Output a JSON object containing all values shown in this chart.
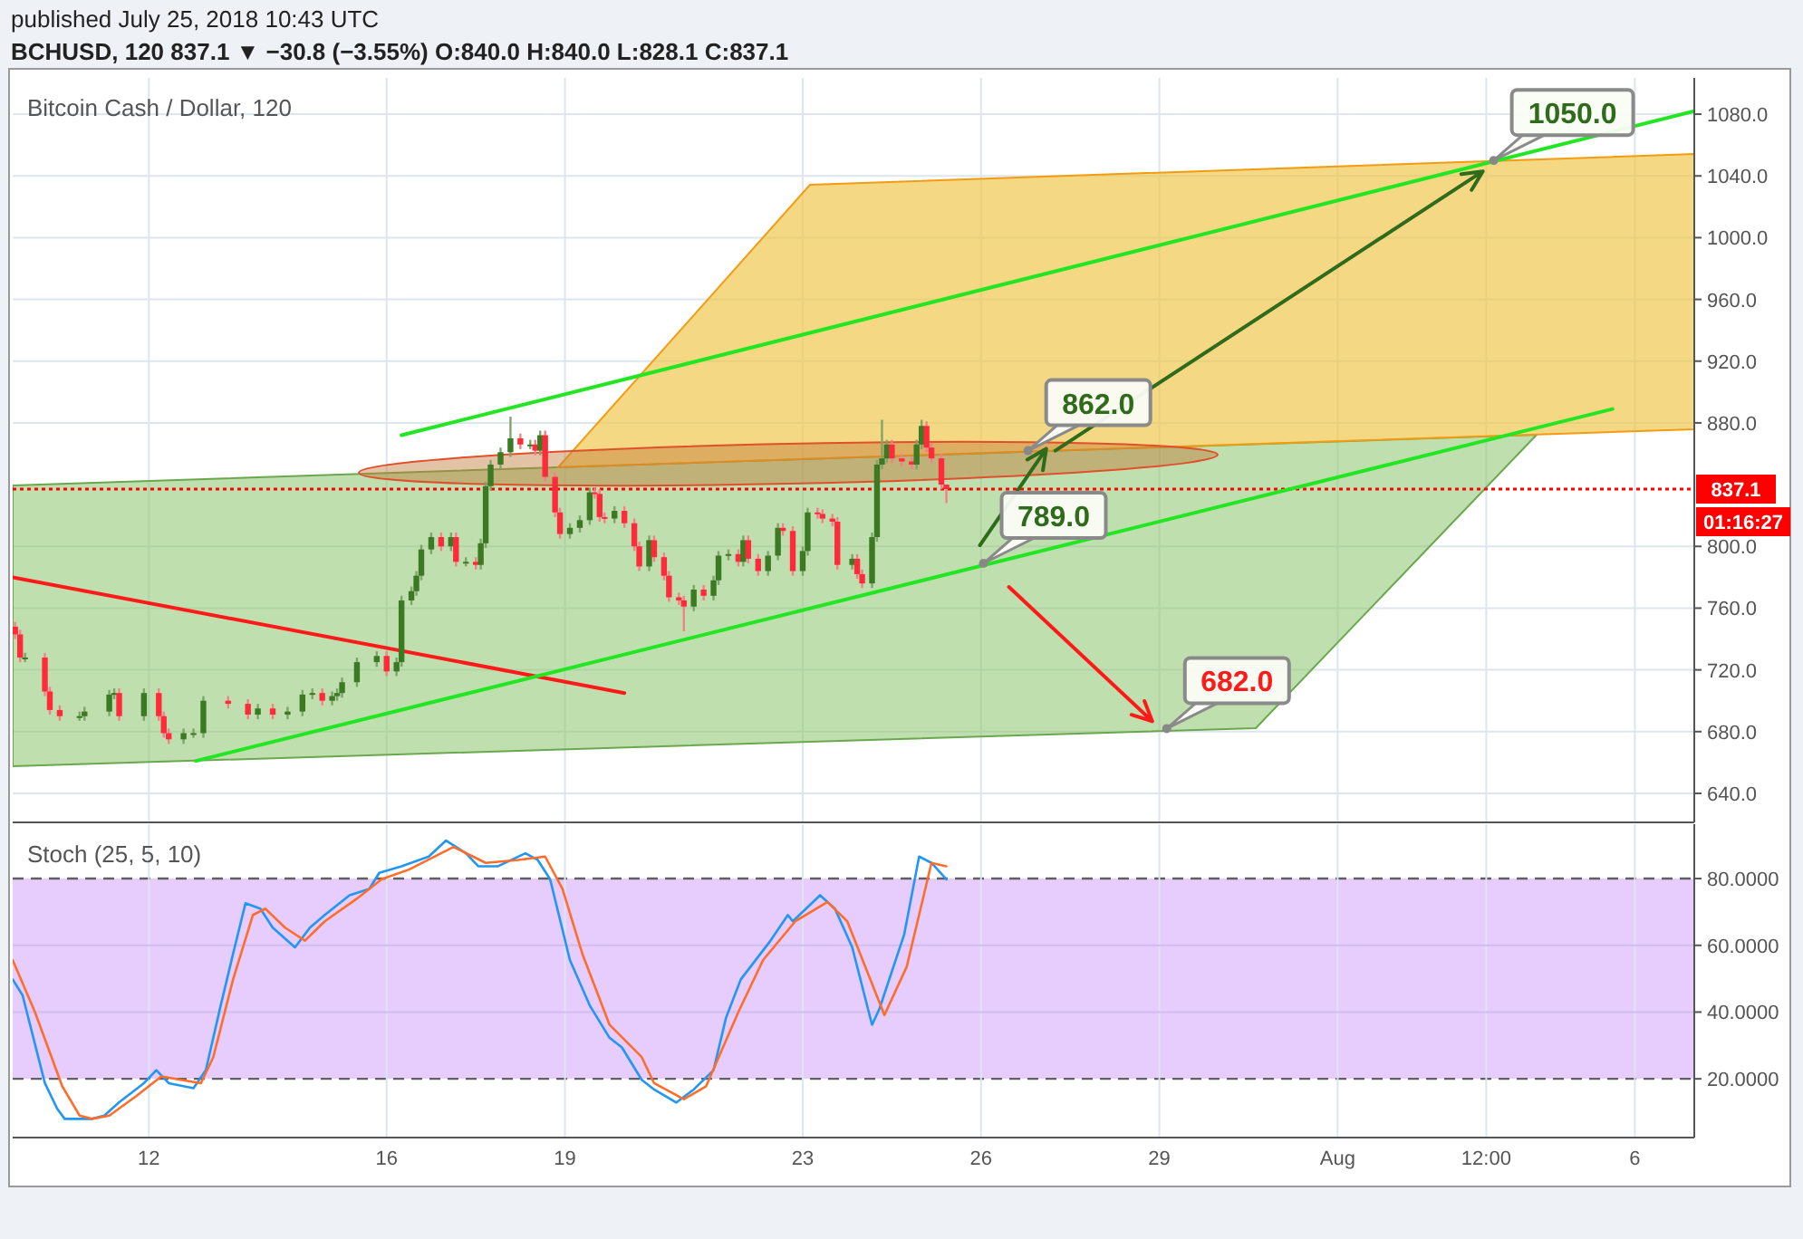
{
  "chart_data": [
    {
      "type": "candlestick",
      "title": "Bitcoin Cash / Dollar, 120",
      "xlim": [
        "2018-07-09T17:00",
        "2018-08-07T00:00"
      ],
      "xticks": [
        {
          "value": "2018-07-12",
          "label": null
        },
        {
          "value": "2018-07-16",
          "label": null
        },
        {
          "value": "2018-07-19",
          "label": null
        },
        {
          "value": "2018-07-23",
          "label": null
        },
        {
          "value": "2018-07-26",
          "label": null
        },
        {
          "value": "2018-07-29",
          "label": null
        },
        {
          "value": "2018-08-01",
          "label": null
        },
        {
          "value": "2018-08-03T12:00",
          "label": null
        },
        {
          "value": "2018-08-06",
          "label": null
        }
      ],
      "ylim": [
        621.2,
        1103.5
      ],
      "yticks": [
        {
          "value": 640,
          "label": "640.0"
        },
        {
          "value": 680,
          "label": "680.0"
        },
        {
          "value": 720,
          "label": "720.0"
        },
        {
          "value": 760,
          "label": "760.0"
        },
        {
          "value": 800,
          "label": "800.0"
        },
        {
          "value": 880,
          "label": "880.0"
        },
        {
          "value": 920,
          "label": "920.0"
        },
        {
          "value": 960,
          "label": "960.0"
        },
        {
          "value": 1000,
          "label": "1000.0"
        },
        {
          "value": 1040,
          "label": "1040.0"
        },
        {
          "value": 1080,
          "label": "1080.0"
        }
      ],
      "grid": true,
      "tick_labels": "y",
      "series": [
        {
          "x": [
            "2018-07-09T18:00",
            "2018-07-09T20:00",
            "2018-07-09T22:00",
            "2018-07-10T06:00",
            "2018-07-10T08:00",
            "2018-07-10T12:00",
            "2018-07-10T20:00",
            "2018-07-10T22:00",
            "2018-07-11T08:00",
            "2018-07-11T10:00",
            "2018-07-11T12:00",
            "2018-07-11T22:00",
            "2018-07-12T04:00",
            "2018-07-12T06:00",
            "2018-07-12T08:00",
            "2018-07-12T14:00",
            "2018-07-12T18:00",
            "2018-07-12T22:00",
            "2018-07-13T08:00",
            "2018-07-13T16:00",
            "2018-07-13T20:00",
            "2018-07-14T02:00",
            "2018-07-14T08:00",
            "2018-07-14T14:00",
            "2018-07-14T18:00",
            "2018-07-14T22:00",
            "2018-07-15T02:00",
            "2018-07-15T04:00",
            "2018-07-15T06:00",
            "2018-07-15T12:00",
            "2018-07-15T20:00",
            "2018-07-16T00:00",
            "2018-07-16T04:00",
            "2018-07-16T06:00",
            "2018-07-16T10:00",
            "2018-07-16T12:00",
            "2018-07-16T14:00",
            "2018-07-16T18:00",
            "2018-07-16T22:00",
            "2018-07-17T02:00",
            "2018-07-17T04:00",
            "2018-07-17T08:00",
            "2018-07-17T12:00",
            "2018-07-17T14:00",
            "2018-07-17T16:00",
            "2018-07-17T18:00",
            "2018-07-17T22:00",
            "2018-07-18T02:00",
            "2018-07-18T06:00",
            "2018-07-18T10:00",
            "2018-07-18T12:00",
            "2018-07-18T14:00",
            "2018-07-18T16:00",
            "2018-07-18T20:00",
            "2018-07-18T22:00",
            "2018-07-19T02:00",
            "2018-07-19T06:00",
            "2018-07-19T10:00",
            "2018-07-19T12:00",
            "2018-07-19T14:00",
            "2018-07-19T16:00",
            "2018-07-19T20:00",
            "2018-07-20T00:00",
            "2018-07-20T04:00",
            "2018-07-20T06:00",
            "2018-07-20T10:00",
            "2018-07-20T12:00",
            "2018-07-20T16:00",
            "2018-07-20T18:00",
            "2018-07-20T22:00",
            "2018-07-21T00:00",
            "2018-07-21T04:00",
            "2018-07-21T08:00",
            "2018-07-21T12:00",
            "2018-07-21T14:00",
            "2018-07-21T18:00",
            "2018-07-21T22:00",
            "2018-07-22T00:00",
            "2018-07-22T02:00",
            "2018-07-22T06:00",
            "2018-07-22T10:00",
            "2018-07-22T14:00",
            "2018-07-22T16:00",
            "2018-07-22T20:00",
            "2018-07-23T00:00",
            "2018-07-23T02:00",
            "2018-07-23T06:00",
            "2018-07-23T08:00",
            "2018-07-23T12:00",
            "2018-07-23T14:00",
            "2018-07-23T20:00",
            "2018-07-23T22:00",
            "2018-07-24T00:00",
            "2018-07-24T04:00",
            "2018-07-24T06:00",
            "2018-07-24T08:00",
            "2018-07-24T10:00",
            "2018-07-24T12:00",
            "2018-07-24T16:00",
            "2018-07-24T20:00",
            "2018-07-24T22:00",
            "2018-07-25T00:00",
            "2018-07-25T02:00",
            "2018-07-25T04:00",
            "2018-07-25T08:00",
            "2018-07-25T10:00"
          ],
          "ohlc": [
            [
              748,
              751,
              740,
              743
            ],
            [
              743,
              746,
              725,
              728
            ],
            [
              728,
              731,
              725,
              728
            ],
            [
              728,
              731,
              703,
              706
            ],
            [
              706,
              709,
              691,
              694
            ],
            [
              694,
              697,
              687,
              690
            ],
            [
              690,
              693,
              687,
              690
            ],
            [
              690,
              696,
              687,
              693
            ],
            [
              693,
              707,
              690,
              704
            ],
            [
              704,
              708,
              701,
              705
            ],
            [
              705,
              708,
              687,
              690
            ],
            [
              690,
              708,
              687,
              705
            ],
            [
              705,
              708,
              687,
              690
            ],
            [
              690,
              693,
              676,
              679
            ],
            [
              679,
              682,
              672,
              675
            ],
            [
              675,
              682,
              672,
              679
            ],
            [
              679,
              682,
              676,
              679
            ],
            [
              679,
              703,
              676,
              700
            ],
            [
              700,
              703,
              695,
              698
            ],
            [
              698,
              701,
              688,
              691
            ],
            [
              691,
              698,
              688,
              695
            ],
            [
              695,
              698,
              688,
              691
            ],
            [
              691,
              696,
              688,
              693
            ],
            [
              693,
              707,
              690,
              704
            ],
            [
              704,
              708,
              701,
              705
            ],
            [
              705,
              708,
              697,
              700
            ],
            [
              700,
              706,
              697,
              703
            ],
            [
              703,
              708,
              700,
              705
            ],
            [
              705,
              715,
              702,
              712
            ],
            [
              712,
              728,
              709,
              725
            ],
            [
              725,
              732,
              722,
              729
            ],
            [
              729,
              732,
              716,
              719
            ],
            [
              719,
              728,
              716,
              725
            ],
            [
              725,
              768,
              722,
              765
            ],
            [
              765,
              774,
              762,
              771
            ],
            [
              771,
              784,
              768,
              781
            ],
            [
              781,
              801,
              778,
              798
            ],
            [
              798,
              809,
              795,
              806
            ],
            [
              806,
              809,
              797,
              800
            ],
            [
              800,
              809,
              797,
              806
            ],
            [
              806,
              809,
              787,
              790
            ],
            [
              790,
              793,
              787,
              790
            ],
            [
              790,
              793,
              785,
              788
            ],
            [
              788,
              805,
              785,
              802
            ],
            [
              802,
              842,
              799,
              839
            ],
            [
              839,
              856,
              836,
              853
            ],
            [
              853,
              864,
              850,
              861
            ],
            [
              861,
              884,
              858,
              870
            ],
            [
              870,
              873,
              863,
              866
            ],
            [
              866,
              869,
              863,
              866
            ],
            [
              866,
              869,
              859,
              862
            ],
            [
              862,
              875,
              859,
              872
            ],
            [
              872,
              875,
              842,
              845
            ],
            [
              845,
              848,
              819,
              822
            ],
            [
              822,
              825,
              805,
              808
            ],
            [
              808,
              815,
              805,
              812
            ],
            [
              812,
              820,
              809,
              817
            ],
            [
              817,
              838,
              814,
              835
            ],
            [
              835,
              838,
              831,
              834
            ],
            [
              834,
              837,
              816,
              819
            ],
            [
              819,
              822,
              815,
              818
            ],
            [
              818,
              826,
              815,
              823
            ],
            [
              823,
              826,
              812,
              815
            ],
            [
              815,
              818,
              797,
              800
            ],
            [
              800,
              803,
              784,
              787
            ],
            [
              787,
              807,
              784,
              804
            ],
            [
              804,
              807,
              790,
              793
            ],
            [
              793,
              796,
              778,
              781
            ],
            [
              781,
              784,
              764,
              767
            ],
            [
              767,
              770,
              762,
              765
            ],
            [
              765,
              768,
              745,
              761
            ],
            [
              761,
              775,
              758,
              772
            ],
            [
              772,
              775,
              765,
              768
            ],
            [
              768,
              781,
              765,
              778
            ],
            [
              778,
              797,
              775,
              794
            ],
            [
              794,
              798,
              791,
              795
            ],
            [
              795,
              798,
              787,
              790
            ],
            [
              790,
              807,
              787,
              804
            ],
            [
              804,
              807,
              789,
              792
            ],
            [
              792,
              795,
              781,
              784
            ],
            [
              784,
              797,
              781,
              794
            ],
            [
              794,
              815,
              791,
              812
            ],
            [
              812,
              815,
              807,
              810
            ],
            [
              810,
              813,
              781,
              784
            ],
            [
              784,
              800,
              781,
              797
            ],
            [
              797,
              825,
              794,
              822
            ],
            [
              822,
              825,
              818,
              821
            ],
            [
              821,
              824,
              815,
              818
            ],
            [
              818,
              821,
              813,
              816
            ],
            [
              816,
              819,
              785,
              788
            ],
            [
              788,
              795,
              785,
              792
            ],
            [
              792,
              795,
              779,
              782
            ],
            [
              782,
              785,
              773,
              776
            ],
            [
              776,
              809,
              773,
              806
            ],
            [
              806,
              856,
              803,
              853
            ],
            [
              853,
              882,
              850,
              857
            ],
            [
              857,
              869,
              854,
              866
            ],
            [
              866,
              869,
              854,
              857
            ],
            [
              857,
              860,
              852,
              855
            ],
            [
              855,
              858,
              850,
              853
            ],
            [
              853,
              869,
              850,
              866
            ],
            [
              866,
              882,
              863,
              878
            ],
            [
              878,
              881,
              861,
              864
            ],
            [
              864,
              867,
              854,
              857
            ],
            [
              857,
              860,
              837,
              840
            ],
            [
              840,
              840,
              828.1,
              837.1
            ]
          ]
        },
        {
          "type": "line",
          "color": "#ff1a1a",
          "x": [
            "2018-07-09T17:00",
            "2018-07-20T00:00"
          ],
          "values": [
            780,
            705
          ]
        },
        {
          "type": "line",
          "color": "#22e622",
          "x": [
            "2018-07-16T06:00",
            "2018-08-07T00:00"
          ],
          "values": [
            872,
            1082
          ]
        },
        {
          "type": "line",
          "color": "#22e622",
          "x": [
            "2018-07-12T19:00",
            "2018-08-05T15:00"
          ],
          "values": [
            661,
            889
          ]
        }
      ],
      "ref_lines": [
        {
          "axis": "y",
          "value": 837.1,
          "label": "837.1",
          "color": "#ff0000",
          "line_style": "dotted"
        }
      ],
      "annotations": [
        "published July 25, 2018 10:43 UTC",
        "BCHUSD, 120 837.1 ▼ −30.8 (−3.55%) O:840.0 H:840.0 L:828.1 C:837.1",
        "01:16:27",
        {
          "text": "862.0",
          "x": "2018-07-26T19:00",
          "y": 862
        },
        {
          "text": "789.0",
          "x": "2018-07-26T01:00",
          "y": 789
        },
        {
          "text": "682.0",
          "x": "2018-07-29T03:00",
          "y": 682
        },
        {
          "text": "1050.0",
          "x": "2018-08-03T15:00",
          "y": 1050
        }
      ]
    },
    {
      "type": "line",
      "title": "Stoch (25, 5, 10)",
      "xlim": [
        "2018-07-09T17:00",
        "2018-08-07T00:00"
      ],
      "xticks": [
        {
          "value": "2018-07-12",
          "label": "12"
        },
        {
          "value": "2018-07-16",
          "label": "16"
        },
        {
          "value": "2018-07-19",
          "label": "19"
        },
        {
          "value": "2018-07-23",
          "label": "23"
        },
        {
          "value": "2018-07-26",
          "label": "26"
        },
        {
          "value": "2018-07-29",
          "label": "29"
        },
        {
          "value": "2018-08-01",
          "label": "Aug"
        },
        {
          "value": "2018-08-03T12:00",
          "label": "12:00"
        },
        {
          "value": "2018-08-06",
          "label": "6"
        }
      ],
      "ylim": [
        2.4,
        96.3
      ],
      "yticks": [
        {
          "value": 20,
          "label": "20.0000"
        },
        {
          "value": 40,
          "label": "40.0000"
        },
        {
          "value": 60,
          "label": "60.0000"
        },
        {
          "value": 80,
          "label": "80.0000"
        }
      ],
      "grid": true,
      "bands": [
        {
          "axis": "y",
          "from": 20,
          "to": 80,
          "color": "#e6cdfd"
        }
      ],
      "series": [
        {
          "color": "#2196f3",
          "x": [
            "2018-07-09T17:00",
            "2018-07-09T21:00",
            "2018-07-10T06:00",
            "2018-07-10T11:00",
            "2018-07-10T14:00",
            "2018-07-11T01:00",
            "2018-07-11T06:00",
            "2018-07-11T12:00",
            "2018-07-11T22:00",
            "2018-07-12T03:00",
            "2018-07-12T08:00",
            "2018-07-12T18:00",
            "2018-07-12T23:00",
            "2018-07-13T05:00",
            "2018-07-13T10:00",
            "2018-07-13T15:00",
            "2018-07-13T21:00",
            "2018-07-14T02:00",
            "2018-07-14T11:00",
            "2018-07-14T17:00",
            "2018-07-14T23:00",
            "2018-07-15T09:00",
            "2018-07-15T17:00",
            "2018-07-15T21:00",
            "2018-07-16T06:00",
            "2018-07-16T17:00",
            "2018-07-17T00:00",
            "2018-07-17T08:00",
            "2018-07-17T13:00",
            "2018-07-17T21:00",
            "2018-07-18T08:00",
            "2018-07-18T13:00",
            "2018-07-18T18:00",
            "2018-07-19T02:00",
            "2018-07-19T10:00",
            "2018-07-19T18:00",
            "2018-07-19T23:00",
            "2018-07-20T07:00",
            "2018-07-20T12:00",
            "2018-07-20T21:00",
            "2018-07-21T04:00",
            "2018-07-21T12:00",
            "2018-07-21T17:00",
            "2018-07-21T23:00",
            "2018-07-22T11:00",
            "2018-07-22T18:00",
            "2018-07-22T20:00",
            "2018-07-23T07:00",
            "2018-07-23T13:00",
            "2018-07-23T20:00",
            "2018-07-24T04:00",
            "2018-07-24T07:00",
            "2018-07-24T17:00",
            "2018-07-24T23:00",
            "2018-07-25T04:00",
            "2018-07-25T10:00"
          ],
          "values": [
            49.8,
            45,
            18.7,
            11,
            8,
            8,
            9,
            13,
            18.7,
            22.6,
            18.7,
            17.2,
            22.6,
            42,
            57.5,
            72.6,
            71,
            65.3,
            59.4,
            65.3,
            69.1,
            75,
            76.9,
            81.7,
            83.7,
            86.6,
            91.4,
            87.6,
            83.7,
            83.7,
            87.6,
            85.6,
            79.8,
            55.6,
            42,
            32.3,
            29.4,
            19.7,
            16.8,
            12.9,
            16.8,
            22.6,
            38.2,
            49.8,
            61.4,
            69.1,
            67.2,
            75,
            71,
            59.4,
            36.2,
            41,
            63.3,
            86.6,
            84.7,
            79.8
          ]
        },
        {
          "color": "#ff6d2a",
          "x": [
            "2018-07-09T17:00",
            "2018-07-10T02:00",
            "2018-07-10T13:00",
            "2018-07-10T20:00",
            "2018-07-11T01:00",
            "2018-07-11T08:00",
            "2018-07-11T19:00",
            "2018-07-12T05:00",
            "2018-07-12T13:00",
            "2018-07-12T21:00",
            "2018-07-13T02:00",
            "2018-07-13T10:00",
            "2018-07-13T18:00",
            "2018-07-13T23:00",
            "2018-07-14T07:00",
            "2018-07-14T15:00",
            "2018-07-14T23:00",
            "2018-07-15T12:00",
            "2018-07-15T22:00",
            "2018-07-16T09:00",
            "2018-07-17T03:00",
            "2018-07-17T16:00",
            "2018-07-18T05:00",
            "2018-07-18T16:00",
            "2018-07-18T23:00",
            "2018-07-19T07:00",
            "2018-07-19T18:00",
            "2018-07-20T07:00",
            "2018-07-20T12:00",
            "2018-07-21T00:00",
            "2018-07-21T09:00",
            "2018-07-21T22:00",
            "2018-07-22T08:00",
            "2018-07-22T21:00",
            "2018-07-23T10:00",
            "2018-07-23T18:00",
            "2018-07-24T09:00",
            "2018-07-24T18:00",
            "2018-07-25T04:00",
            "2018-07-25T10:00"
          ],
          "values": [
            55.6,
            40,
            17.8,
            9,
            8,
            9,
            14.9,
            20.7,
            19.7,
            18.7,
            26.5,
            49.8,
            69.1,
            71,
            65.3,
            61.4,
            67.2,
            74,
            79.8,
            82.7,
            89.5,
            84.7,
            85.6,
            86.6,
            76.9,
            57.5,
            36.2,
            26.5,
            18.7,
            13.9,
            17.8,
            40,
            55.6,
            67.2,
            73,
            67.2,
            39.1,
            53.6,
            84.7,
            83.7
          ]
        }
      ]
    }
  ]
}
